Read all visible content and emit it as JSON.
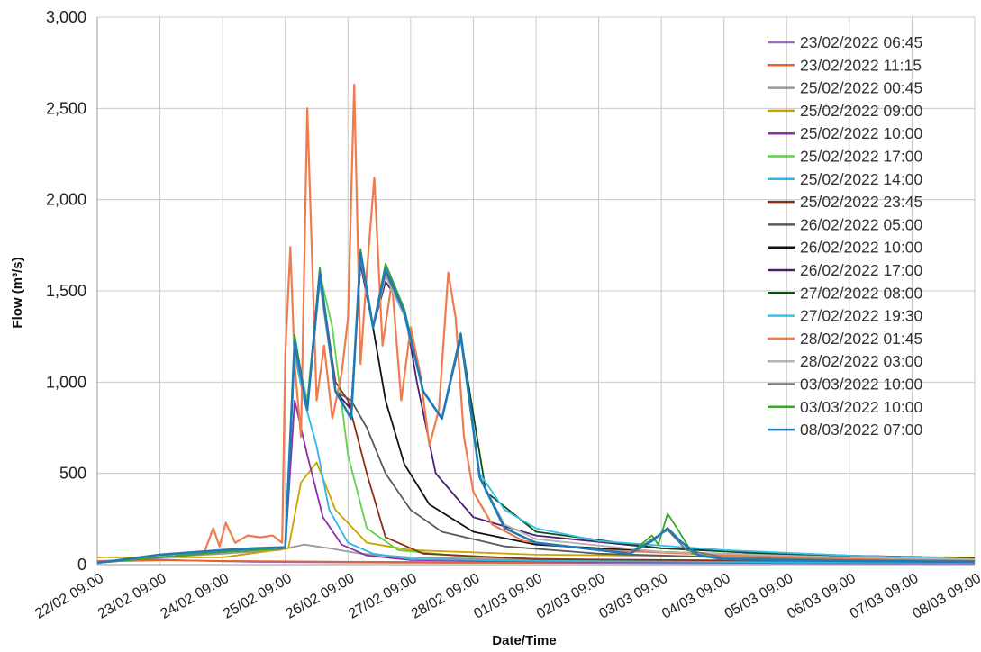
{
  "chart_data": {
    "type": "line",
    "xlabel": "Date/Time",
    "ylabel": "Flow (m³/s)",
    "ylim": [
      0,
      3000
    ],
    "y_ticks": [
      0,
      500,
      1000,
      1500,
      2000,
      2500,
      3000
    ],
    "y_tick_labels": [
      "0",
      "500",
      "1,000",
      "1,500",
      "2,000",
      "2,500",
      "3,000"
    ],
    "x_tick_labels": [
      "22/02 09:00",
      "23/02 09:00",
      "24/02 09:00",
      "25/02 09:00",
      "26/02 09:00",
      "27/02 09:00",
      "28/02 09:00",
      "01/03 09:00",
      "02/03 09:00",
      "03/03 09:00",
      "04/03 09:00",
      "05/03 09:00",
      "06/03 09:00",
      "07/03 09:00",
      "08/03 09:00"
    ],
    "x_tick_days": [
      0,
      1,
      2,
      3,
      4,
      5,
      6,
      7,
      8,
      9,
      10,
      11,
      12,
      13,
      14
    ],
    "xlim_days": [
      0,
      14
    ],
    "grid": true,
    "legend_position": "top-right",
    "series": [
      {
        "name": "23/02/2022 06:45",
        "color": "#9b6bbf",
        "x_days": [
          0,
          1.0,
          1.5,
          2.5,
          4,
          6,
          10,
          14
        ],
        "y": [
          20,
          28,
          22,
          15,
          12,
          10,
          8,
          6
        ]
      },
      {
        "name": "23/02/2022 11:15",
        "color": "#e8622c",
        "x_days": [
          0,
          1.1,
          2,
          4,
          8,
          14
        ],
        "y": [
          18,
          24,
          20,
          16,
          12,
          10
        ]
      },
      {
        "name": "25/02/2022 00:45",
        "color": "#9a9a9a",
        "x_days": [
          0,
          1.0,
          2,
          2.9,
          3.3,
          3.7,
          4.2,
          5,
          7,
          10,
          14
        ],
        "y": [
          10,
          40,
          60,
          80,
          110,
          90,
          60,
          40,
          25,
          15,
          10
        ]
      },
      {
        "name": "25/02/2022 09:00",
        "color": "#c9a400",
        "x_days": [
          0,
          2,
          3.05,
          3.25,
          3.5,
          3.8,
          4.3,
          5,
          7,
          10,
          14
        ],
        "y": [
          40,
          40,
          90,
          450,
          560,
          300,
          120,
          80,
          55,
          45,
          40
        ]
      },
      {
        "name": "25/02/2022 10:00",
        "color": "#8b2fa6",
        "x_days": [
          0,
          2,
          3.0,
          3.15,
          3.35,
          3.6,
          3.9,
          4.3,
          5,
          8,
          14
        ],
        "y": [
          10,
          70,
          90,
          900,
          600,
          260,
          110,
          50,
          25,
          15,
          10
        ]
      },
      {
        "name": "25/02/2022 17:00",
        "color": "#5fd14a",
        "x_days": [
          0,
          2,
          3.0,
          3.15,
          3.35,
          3.55,
          3.75,
          4.0,
          4.3,
          4.8,
          6,
          9,
          14
        ],
        "y": [
          10,
          70,
          90,
          1200,
          900,
          1600,
          1300,
          600,
          200,
          80,
          40,
          20,
          10
        ]
      },
      {
        "name": "25/02/2022 14:00",
        "color": "#2db6e8",
        "x_days": [
          0,
          2,
          3.0,
          3.15,
          3.3,
          3.5,
          3.7,
          4.0,
          4.4,
          5,
          7,
          10,
          14
        ],
        "y": [
          10,
          70,
          90,
          1150,
          900,
          650,
          300,
          120,
          60,
          30,
          20,
          15,
          10
        ]
      },
      {
        "name": "25/02/2022 23:45",
        "color": "#8c2d14",
        "x_days": [
          0,
          2,
          3.0,
          3.15,
          3.35,
          3.55,
          3.8,
          4.0,
          4.3,
          4.6,
          5.2,
          7,
          14
        ],
        "y": [
          10,
          70,
          90,
          1200,
          850,
          1600,
          1000,
          900,
          500,
          150,
          60,
          30,
          15
        ]
      },
      {
        "name": "26/02/2022 05:00",
        "color": "#5a5a5a",
        "x_days": [
          0,
          2,
          3.0,
          3.15,
          3.35,
          3.55,
          3.8,
          4.05,
          4.3,
          4.6,
          5.0,
          5.5,
          6.5,
          8,
          10,
          14
        ],
        "y": [
          10,
          70,
          90,
          1200,
          850,
          1550,
          950,
          900,
          750,
          500,
          300,
          180,
          100,
          60,
          40,
          20
        ]
      },
      {
        "name": "26/02/2022 10:00",
        "color": "#111111",
        "x_days": [
          0,
          2,
          3.0,
          3.15,
          3.35,
          3.55,
          3.8,
          4.05,
          4.2,
          4.4,
          4.6,
          4.9,
          5.3,
          6,
          7,
          9,
          12,
          14
        ],
        "y": [
          10,
          70,
          90,
          1200,
          850,
          1580,
          950,
          850,
          1650,
          1300,
          900,
          550,
          330,
          180,
          110,
          70,
          40,
          30
        ]
      },
      {
        "name": "26/02/2022 17:00",
        "color": "#4a1f6b",
        "x_days": [
          0,
          2,
          3.0,
          3.15,
          3.35,
          3.55,
          3.8,
          4.05,
          4.2,
          4.4,
          4.6,
          4.9,
          5.1,
          5.4,
          6,
          7,
          9,
          12,
          14
        ],
        "y": [
          10,
          70,
          90,
          1200,
          850,
          1580,
          950,
          850,
          1650,
          1300,
          1550,
          1400,
          1000,
          500,
          260,
          160,
          90,
          50,
          35
        ]
      },
      {
        "name": "27/02/2022 08:00",
        "color": "#0e4d14",
        "x_days": [
          0,
          2,
          3.0,
          3.15,
          3.35,
          3.55,
          3.8,
          4.05,
          4.2,
          4.4,
          4.6,
          4.9,
          5.2,
          5.5,
          5.8,
          6.2,
          7,
          9,
          11,
          14
        ],
        "y": [
          10,
          70,
          90,
          1230,
          850,
          1620,
          950,
          800,
          1720,
          1300,
          1600,
          1400,
          950,
          800,
          1250,
          400,
          180,
          90,
          55,
          35
        ]
      },
      {
        "name": "27/02/2022 19:30",
        "color": "#35c0ef",
        "x_days": [
          0,
          2,
          3.0,
          3.15,
          3.35,
          3.55,
          3.8,
          4.05,
          4.2,
          4.4,
          4.6,
          4.9,
          5.2,
          5.5,
          5.8,
          6.1,
          6.5,
          7,
          8,
          10,
          12,
          14
        ],
        "y": [
          10,
          70,
          90,
          1200,
          850,
          1600,
          950,
          800,
          1700,
          1300,
          1600,
          1380,
          950,
          800,
          1250,
          500,
          300,
          200,
          130,
          80,
          50,
          30
        ]
      },
      {
        "name": "28/02/2022 01:45",
        "color": "#f07b4e",
        "x_days": [
          0,
          1.0,
          1.2,
          1.7,
          1.85,
          1.95,
          2.05,
          2.2,
          2.4,
          2.6,
          2.8,
          2.95,
          3.0,
          3.08,
          3.15,
          3.25,
          3.35,
          3.5,
          3.62,
          3.75,
          3.9,
          4.0,
          4.1,
          4.2,
          4.3,
          4.42,
          4.55,
          4.7,
          4.85,
          5.0,
          5.15,
          5.3,
          5.45,
          5.6,
          5.72,
          5.85,
          6.0,
          6.3,
          6.8,
          8,
          11,
          14
        ],
        "y": [
          10,
          40,
          60,
          60,
          200,
          100,
          230,
          120,
          160,
          150,
          160,
          120,
          1150,
          1740,
          1100,
          700,
          2500,
          900,
          1200,
          800,
          1050,
          1350,
          2630,
          1100,
          1600,
          2120,
          1200,
          1550,
          900,
          1300,
          1050,
          650,
          850,
          1600,
          1350,
          700,
          400,
          220,
          130,
          80,
          40,
          25
        ]
      },
      {
        "name": "28/02/2022 03:00",
        "color": "#b4b4b4",
        "x_days": [
          0,
          2,
          3.0,
          3.15,
          3.35,
          3.55,
          3.8,
          4.05,
          4.2,
          4.4,
          4.6,
          4.9,
          5.2,
          5.5,
          5.8,
          6.1,
          6.5,
          7,
          9,
          12,
          14
        ],
        "y": [
          10,
          70,
          90,
          1180,
          850,
          1560,
          950,
          800,
          1680,
          1300,
          1580,
          1360,
          950,
          800,
          1230,
          480,
          220,
          140,
          70,
          40,
          30
        ]
      },
      {
        "name": "03/03/2022 10:00",
        "color": "#777777",
        "x_days": [
          0,
          2,
          3.0,
          3.15,
          3.35,
          3.55,
          3.8,
          4.05,
          4.2,
          4.4,
          4.6,
          4.9,
          5.2,
          5.5,
          5.8,
          6.1,
          6.5,
          7,
          8.5,
          8.9,
          9.1,
          9.4,
          10,
          12,
          14
        ],
        "y": [
          10,
          70,
          90,
          1190,
          850,
          1580,
          950,
          800,
          1700,
          1300,
          1600,
          1380,
          950,
          800,
          1240,
          480,
          200,
          120,
          60,
          150,
          190,
          80,
          40,
          25,
          20
        ]
      },
      {
        "name": "03/03/2022 10:00",
        "color": "#3aa62a",
        "x_days": [
          0,
          2,
          3.0,
          3.15,
          3.35,
          3.55,
          3.8,
          4.05,
          4.2,
          4.4,
          4.6,
          4.9,
          5.2,
          5.5,
          5.8,
          6.1,
          6.5,
          7,
          8.5,
          8.85,
          8.95,
          9.1,
          9.25,
          9.5,
          10,
          12,
          14
        ],
        "y": [
          10,
          70,
          90,
          1260,
          850,
          1630,
          950,
          800,
          1730,
          1300,
          1650,
          1400,
          950,
          800,
          1270,
          480,
          200,
          120,
          60,
          160,
          110,
          280,
          200,
          60,
          30,
          20,
          15
        ]
      },
      {
        "name": "08/03/2022 07:00",
        "color": "#1f7ab8",
        "x_days": [
          0,
          1.0,
          2,
          2.5,
          3.0,
          3.15,
          3.35,
          3.55,
          3.8,
          4.05,
          4.2,
          4.4,
          4.6,
          4.9,
          5.2,
          5.5,
          5.8,
          6.1,
          6.5,
          7,
          8.5,
          8.85,
          9.1,
          9.3,
          9.6,
          10,
          12,
          14
        ],
        "y": [
          10,
          55,
          80,
          90,
          95,
          1220,
          850,
          1600,
          950,
          800,
          1710,
          1300,
          1620,
          1380,
          950,
          800,
          1260,
          480,
          200,
          120,
          60,
          130,
          200,
          130,
          50,
          30,
          20,
          15
        ]
      }
    ]
  }
}
